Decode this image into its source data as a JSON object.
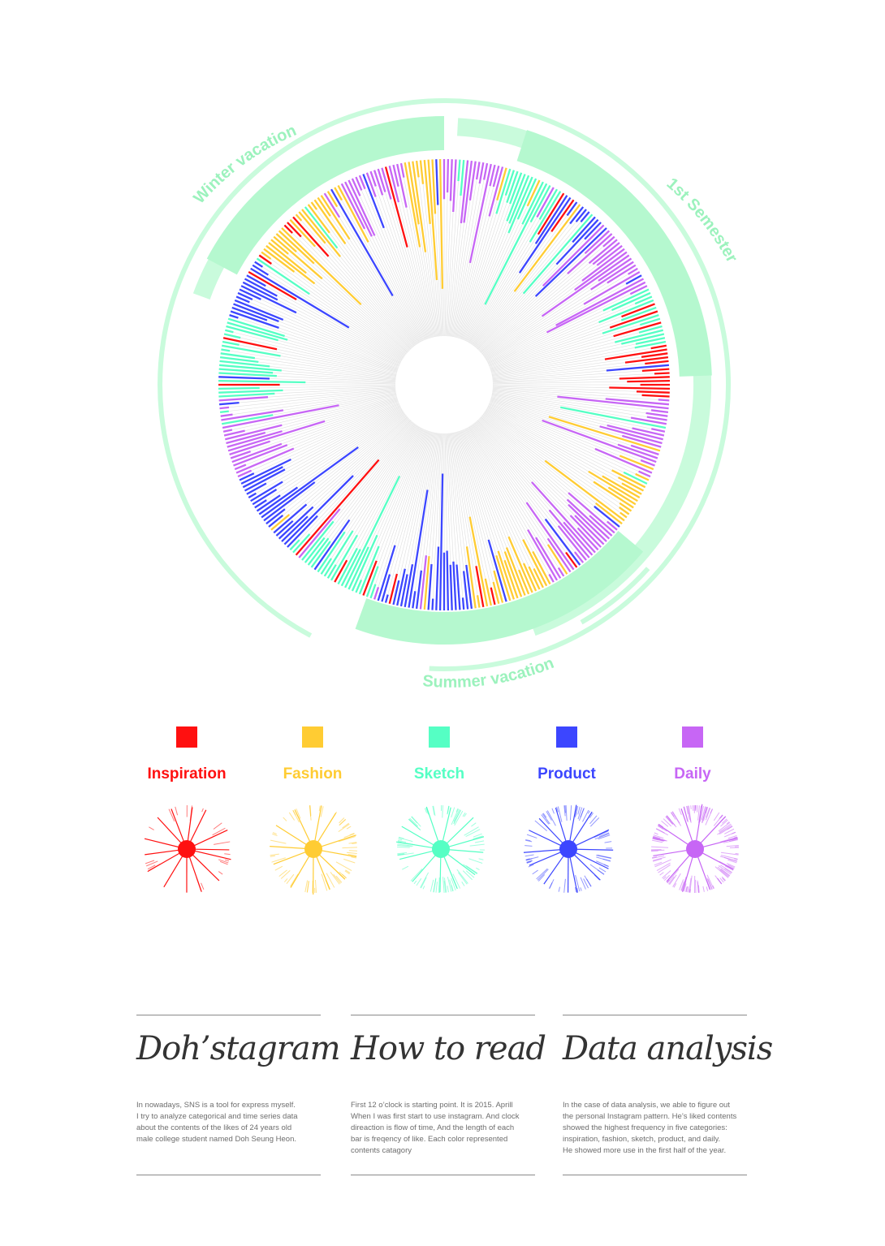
{
  "colors": {
    "inspiration": "#ff1010",
    "fashion": "#ffcc33",
    "sketch": "#55ffc4",
    "product": "#3c46ff",
    "daily": "#c766f5",
    "band": "#c9fbdc",
    "band_strong": "#b5f8cf",
    "band_text": "#9cf2bd",
    "grid": "#dedede"
  },
  "period_labels": {
    "winter": "Winter vacation",
    "first_semester": "1st Semester",
    "summer": "Summer vacation"
  },
  "legend": [
    {
      "key": "inspiration",
      "label": "Inspiration"
    },
    {
      "key": "fashion",
      "label": "Fashion"
    },
    {
      "key": "sketch",
      "label": "Sketch"
    },
    {
      "key": "product",
      "label": "Product"
    },
    {
      "key": "daily",
      "label": "Daily"
    }
  ],
  "chart_data": {
    "type": "radial-bar",
    "start": "12 o'clock (Apr 2015)",
    "direction": "clockwise",
    "categories": [
      "Inspiration",
      "Fashion",
      "Sketch",
      "Product",
      "Daily"
    ],
    "category_order": [
      "daily",
      "sketch",
      "product",
      "inspiration",
      "daily",
      "fashion",
      "daily",
      "fashion",
      "product",
      "sketch",
      "daily"
    ],
    "periods": [
      {
        "name": "1st Semester",
        "start_fraction": 0.05,
        "end_fraction": 0.26
      },
      {
        "name": "Summer vacation",
        "start_fraction": 0.37,
        "end_fraction": 0.56
      },
      {
        "name": "Winter vacation",
        "start_fraction": 0.8,
        "end_fraction": 1.0
      }
    ]
  },
  "columns": [
    {
      "heading": "Doh’stagram",
      "lines": [
        "In nowadays, SNS is a tool for express myself.",
        "I try to analyze categorical and time series data",
        "about the contents of the likes of 24 years old",
        "male college student named Doh Seung Heon."
      ]
    },
    {
      "heading": "How to read",
      "lines": [
        "First 12 o’clock is starting point. It is 2015. Aprill",
        "When I was first start to use instagram. And clock",
        "direaction is flow of time, And the length of each",
        "bar is freqency of like. Each color represented",
        "contents catagory"
      ]
    },
    {
      "heading": "Data analysis",
      "lines": [
        "In the case of data analysis, we able to figure out",
        "the personal Instagram pattern. He’s liked contents",
        "showed the highest frequency in five categories:",
        "inspiration, fashion, sketch, product, and daily.",
        "He showed more use in the first half of the year."
      ]
    }
  ]
}
